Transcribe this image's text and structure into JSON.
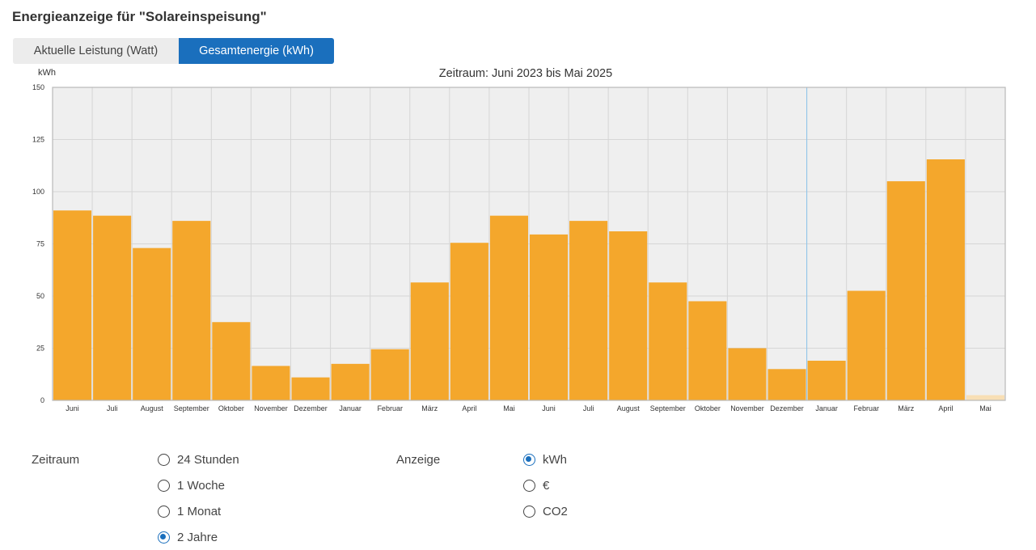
{
  "header": {
    "title": "Energieanzeige für \"Solareinspeisung\""
  },
  "tabs": [
    {
      "label": "Aktuelle Leistung (Watt)",
      "active": false
    },
    {
      "label": "Gesamtenergie (kWh)",
      "active": true
    }
  ],
  "chart_data": {
    "type": "bar",
    "title": "Zeitraum: Juni 2023 bis Mai 2025",
    "ylabel": "kWh",
    "xlabel": "",
    "ylim": [
      0,
      150
    ],
    "yticks": [
      0,
      25,
      50,
      75,
      100,
      125,
      150
    ],
    "grid": true,
    "bar_color": "#f4a72c",
    "current_bar_color": "#f8dfb5",
    "plot_background": "#efefef",
    "year_divider_after_index": 18,
    "categories": [
      "Juni",
      "Juli",
      "August",
      "September",
      "Oktober",
      "November",
      "Dezember",
      "Januar",
      "Februar",
      "März",
      "April",
      "Mai",
      "Juni",
      "Juli",
      "August",
      "September",
      "Oktober",
      "November",
      "Dezember",
      "Januar",
      "Februar",
      "März",
      "April",
      "Mai"
    ],
    "values": [
      91,
      88.5,
      73,
      86,
      37.5,
      16.5,
      11,
      17.5,
      24.5,
      56.5,
      75.5,
      88.5,
      79.5,
      86,
      81,
      56.5,
      47.5,
      25,
      15,
      19,
      52.5,
      105,
      115.5,
      2.5
    ]
  },
  "controls": {
    "zeitraum": {
      "label": "Zeitraum",
      "options": [
        {
          "label": "24 Stunden",
          "checked": false
        },
        {
          "label": "1 Woche",
          "checked": false
        },
        {
          "label": "1 Monat",
          "checked": false
        },
        {
          "label": "2 Jahre",
          "checked": true
        }
      ]
    },
    "anzeige": {
      "label": "Anzeige",
      "options": [
        {
          "label": "kWh",
          "checked": true
        },
        {
          "label": "€",
          "checked": false
        },
        {
          "label": "CO2",
          "checked": false
        }
      ]
    }
  },
  "colors": {
    "accent": "#1a6fbd",
    "tab_inactive": "#ececec"
  }
}
